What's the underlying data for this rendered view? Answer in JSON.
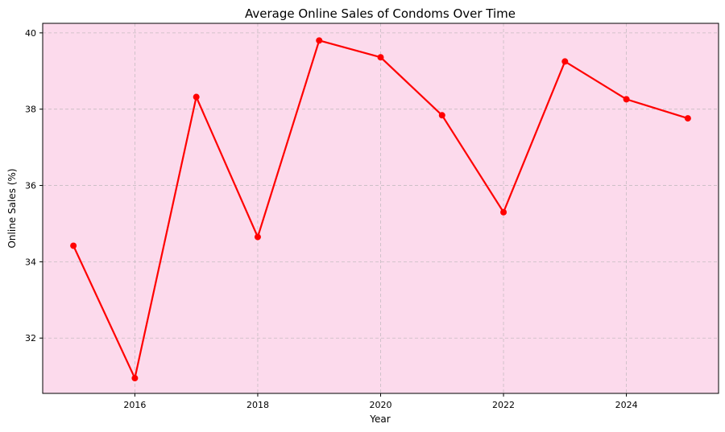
{
  "chart_data": {
    "type": "line",
    "title": "Average Online Sales of Condoms Over Time",
    "xlabel": "Year",
    "ylabel": "Online Sales (%)",
    "x": [
      2015,
      2016,
      2017,
      2018,
      2019,
      2020,
      2021,
      2022,
      2023,
      2024,
      2025
    ],
    "series": [
      {
        "name": "Online Sales",
        "values": [
          34.42,
          30.95,
          38.32,
          34.65,
          39.8,
          39.36,
          37.84,
          35.3,
          39.25,
          38.26,
          37.76
        ]
      }
    ],
    "xlim": [
      2014.5,
      2025.5
    ],
    "ylim": [
      30.55,
      40.25
    ],
    "x_ticks": [
      2016,
      2018,
      2020,
      2022,
      2024
    ],
    "y_ticks": [
      32,
      34,
      36,
      38,
      40
    ],
    "grid": true,
    "colors": {
      "plot_background": "#fcdaec",
      "line": "#ff0000",
      "grid": "#b0b0b0",
      "axis": "#000000"
    }
  }
}
